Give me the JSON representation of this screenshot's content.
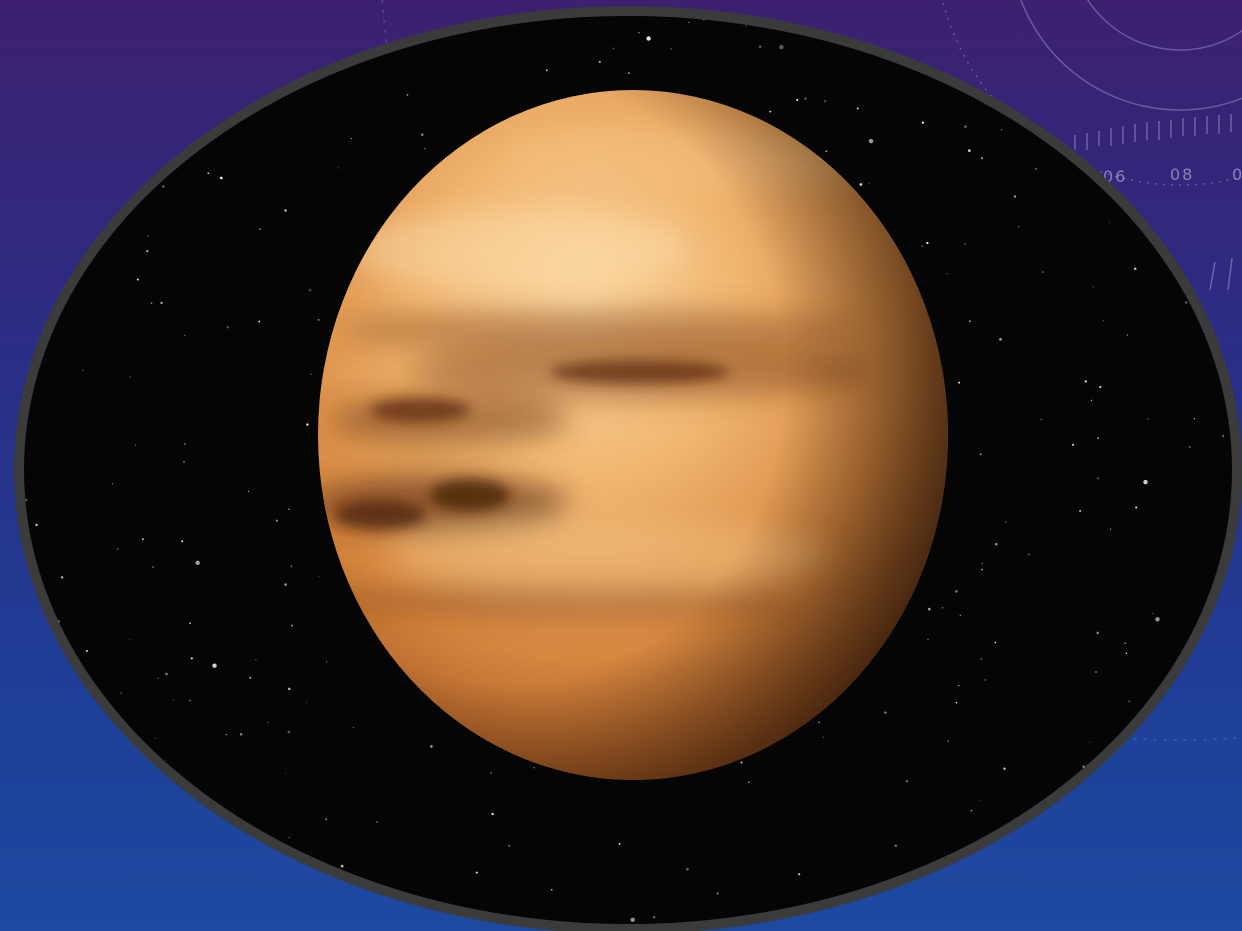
{
  "slide": {
    "background_colors": [
      "#3d2070",
      "#2a2e86",
      "#1d49a0"
    ],
    "frame_color": "#3b3b3b",
    "dial_labels": [
      "06",
      "08",
      "0"
    ]
  },
  "image": {
    "subject": "planet-venus",
    "planet_colors": [
      "#f7c489",
      "#d88a48",
      "#8a4418"
    ],
    "space_color": "#050505"
  }
}
